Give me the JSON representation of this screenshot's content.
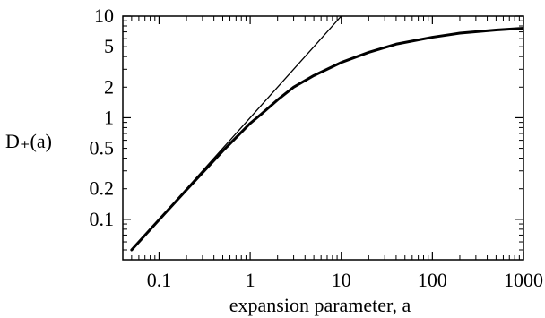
{
  "chart_data": {
    "type": "line",
    "title": "",
    "xlabel": "expansion parameter, a",
    "ylabel": "D₊(a)",
    "xscale": "log",
    "yscale": "log",
    "xlim": [
      0.04,
      1000
    ],
    "ylim": [
      0.04,
      10
    ],
    "grid": false,
    "legend": "none",
    "x_ticks": [
      {
        "value": 0.1,
        "label": "0.1"
      },
      {
        "value": 1,
        "label": "1"
      },
      {
        "value": 10,
        "label": "10"
      },
      {
        "value": 100,
        "label": "100"
      },
      {
        "value": 1000,
        "label": "1000"
      }
    ],
    "y_ticks": [
      {
        "value": 0.1,
        "label": "0.1"
      },
      {
        "value": 0.2,
        "label": "0.2"
      },
      {
        "value": 0.5,
        "label": "0.5"
      },
      {
        "value": 1,
        "label": "1"
      },
      {
        "value": 2,
        "label": "2"
      },
      {
        "value": 5,
        "label": "5"
      },
      {
        "value": 10,
        "label": "10"
      }
    ],
    "series": [
      {
        "style": "thin",
        "color": "#000000",
        "x": [
          0.05,
          0.1,
          0.2,
          0.5,
          1,
          2,
          5,
          10
        ],
        "y": [
          0.05,
          0.1,
          0.2,
          0.5,
          1,
          2,
          5,
          10
        ]
      },
      {
        "style": "thick",
        "color": "#000000",
        "x": [
          0.05,
          0.1,
          0.2,
          0.5,
          1,
          1.3,
          2,
          3,
          5,
          10,
          20,
          40,
          100,
          200,
          500,
          1000
        ],
        "y": [
          0.05,
          0.099,
          0.195,
          0.47,
          0.88,
          1.07,
          1.5,
          2.0,
          2.6,
          3.5,
          4.4,
          5.3,
          6.2,
          6.8,
          7.3,
          7.6
        ]
      }
    ]
  }
}
